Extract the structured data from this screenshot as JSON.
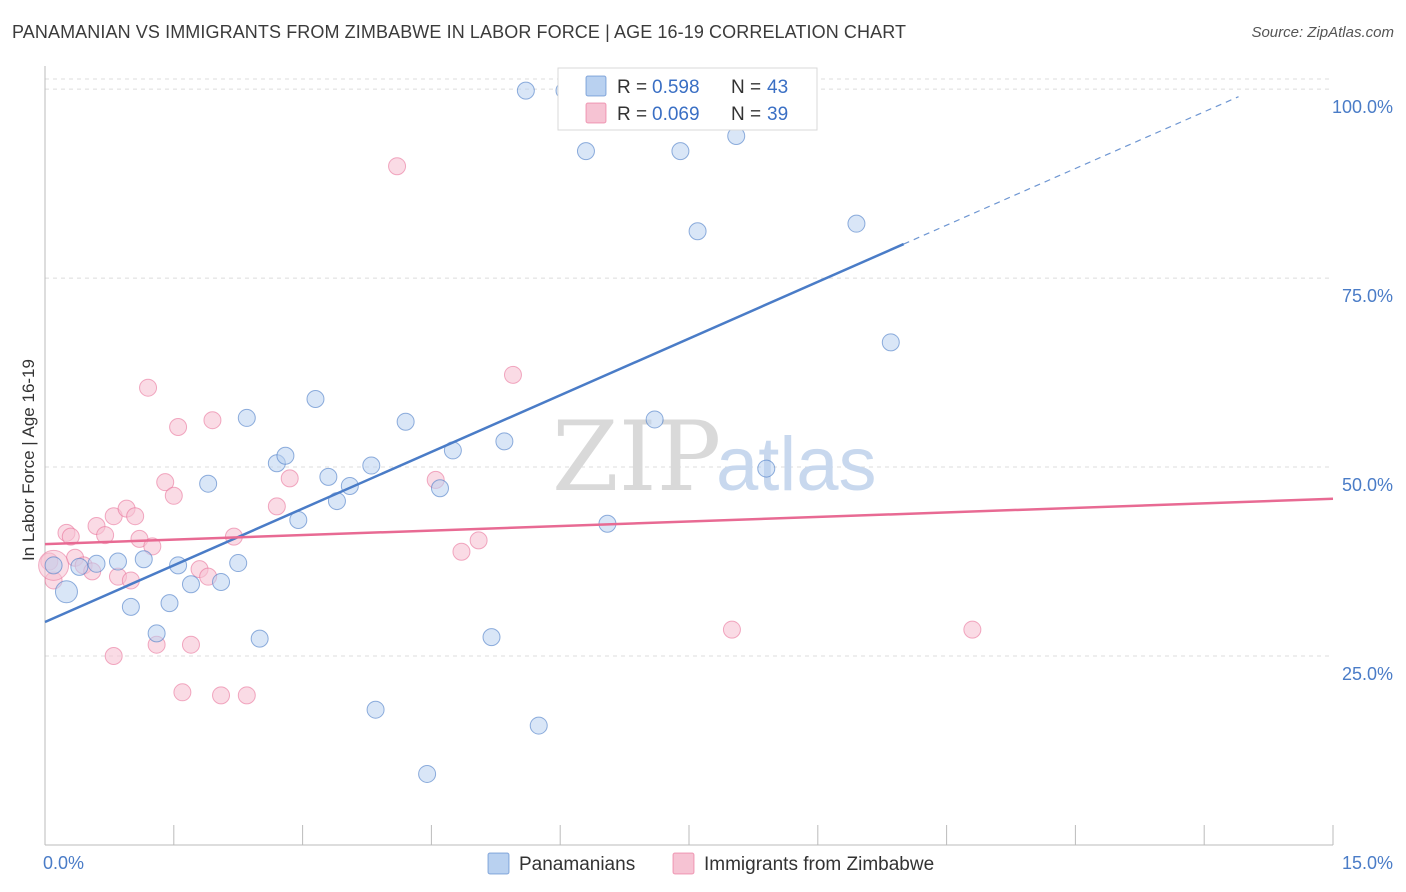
{
  "title": "PANAMANIAN VS IMMIGRANTS FROM ZIMBABWE IN LABOR FORCE | AGE 16-19 CORRELATION CHART",
  "source": "Source: ZipAtlas.com",
  "watermark": {
    "zip": "ZIP",
    "atlas": "atlas"
  },
  "chart_data": {
    "type": "scatter",
    "title": "PANAMANIAN VS IMMIGRANTS FROM ZIMBABWE IN LABOR FORCE | AGE 16-19 CORRELATION CHART",
    "xlabel": "",
    "ylabel": "In Labor Force | Age 16-19",
    "xlim": [
      0,
      15
    ],
    "ylim": [
      0,
      102
    ],
    "x_tick_labels": [
      "0.0%",
      "15.0%"
    ],
    "y_ticks": [
      25,
      50,
      75,
      100
    ],
    "y_tick_labels": [
      "25.0%",
      "50.0%",
      "75.0%",
      "100.0%"
    ],
    "grid": true,
    "colors": {
      "blue": "#4a7cc7",
      "blue_fill": "#b9d1f0",
      "pink": "#e86a93",
      "pink_fill": "#f6c3d3",
      "tick_text": "#4a7cc7"
    },
    "legend": {
      "position": "top-center",
      "entries": [
        {
          "r_label": "R = ",
          "r_value": "0.598",
          "n_label": "N = ",
          "n_value": "43"
        },
        {
          "r_label": "R = ",
          "r_value": "0.069",
          "n_label": "N = ",
          "n_value": "39"
        }
      ]
    },
    "bottom_legend": [
      "Panamanians",
      "Immigrants from Zimbabwe"
    ],
    "series": [
      {
        "name": "Panamanians",
        "color": "#4a7cc7",
        "trend": {
          "x0": 0,
          "y0": 29.5,
          "x1": 10.0,
          "y1": 79.5,
          "dashed_to_x": 13.9
        },
        "points": [
          [
            0.1,
            37.0
          ],
          [
            0.25,
            33.5
          ],
          [
            0.4,
            36.8
          ],
          [
            0.6,
            37.2
          ],
          [
            0.85,
            37.5
          ],
          [
            1.0,
            31.5
          ],
          [
            1.15,
            37.8
          ],
          [
            1.3,
            28.0
          ],
          [
            1.45,
            32.0
          ],
          [
            1.55,
            37.0
          ],
          [
            1.7,
            34.5
          ],
          [
            1.9,
            47.8
          ],
          [
            2.05,
            34.8
          ],
          [
            2.25,
            37.3
          ],
          [
            2.35,
            56.5
          ],
          [
            2.5,
            27.3
          ],
          [
            2.7,
            50.5
          ],
          [
            2.8,
            51.5
          ],
          [
            2.95,
            43.0
          ],
          [
            3.15,
            59.0
          ],
          [
            3.3,
            48.7
          ],
          [
            3.4,
            45.5
          ],
          [
            3.55,
            47.5
          ],
          [
            3.8,
            50.2
          ],
          [
            3.85,
            17.9
          ],
          [
            4.2,
            56.0
          ],
          [
            4.45,
            9.4
          ],
          [
            4.6,
            47.2
          ],
          [
            4.75,
            52.2
          ],
          [
            5.2,
            27.5
          ],
          [
            5.35,
            53.4
          ],
          [
            5.6,
            99.8
          ],
          [
            5.75,
            15.8
          ],
          [
            6.05,
            99.8
          ],
          [
            6.3,
            91.8
          ],
          [
            6.55,
            42.5
          ],
          [
            7.1,
            56.3
          ],
          [
            7.4,
            91.8
          ],
          [
            7.6,
            81.2
          ],
          [
            8.05,
            93.8
          ],
          [
            8.4,
            49.8
          ],
          [
            9.45,
            82.2
          ],
          [
            9.85,
            66.5
          ]
        ]
      },
      {
        "name": "Immigrants from Zimbabwe",
        "color": "#e86a93",
        "trend": {
          "x0": 0,
          "y0": 39.8,
          "x1": 15,
          "y1": 45.8
        },
        "points": [
          [
            0.05,
            37.5
          ],
          [
            0.1,
            35.0
          ],
          [
            0.25,
            41.3
          ],
          [
            0.3,
            40.8
          ],
          [
            0.35,
            38.0
          ],
          [
            0.45,
            37.0
          ],
          [
            0.55,
            36.2
          ],
          [
            0.6,
            42.2
          ],
          [
            0.7,
            41.0
          ],
          [
            0.8,
            43.5
          ],
          [
            0.85,
            35.5
          ],
          [
            0.95,
            44.5
          ],
          [
            1.05,
            43.5
          ],
          [
            0.8,
            25.0
          ],
          [
            1.1,
            40.5
          ],
          [
            1.2,
            60.5
          ],
          [
            1.25,
            39.5
          ],
          [
            1.3,
            26.5
          ],
          [
            1.4,
            48.0
          ],
          [
            1.5,
            46.2
          ],
          [
            1.55,
            55.3
          ],
          [
            1.6,
            20.2
          ],
          [
            1.7,
            26.5
          ],
          [
            1.8,
            36.5
          ],
          [
            1.9,
            35.5
          ],
          [
            1.95,
            56.2
          ],
          [
            2.05,
            19.8
          ],
          [
            2.2,
            40.8
          ],
          [
            2.35,
            19.8
          ],
          [
            2.7,
            44.8
          ],
          [
            2.85,
            48.5
          ],
          [
            4.1,
            89.8
          ],
          [
            4.55,
            48.3
          ],
          [
            4.85,
            38.8
          ],
          [
            5.05,
            40.3
          ],
          [
            5.45,
            62.2
          ],
          [
            8.0,
            28.5
          ],
          [
            10.8,
            28.5
          ],
          [
            1.0,
            35.0
          ]
        ]
      }
    ]
  }
}
